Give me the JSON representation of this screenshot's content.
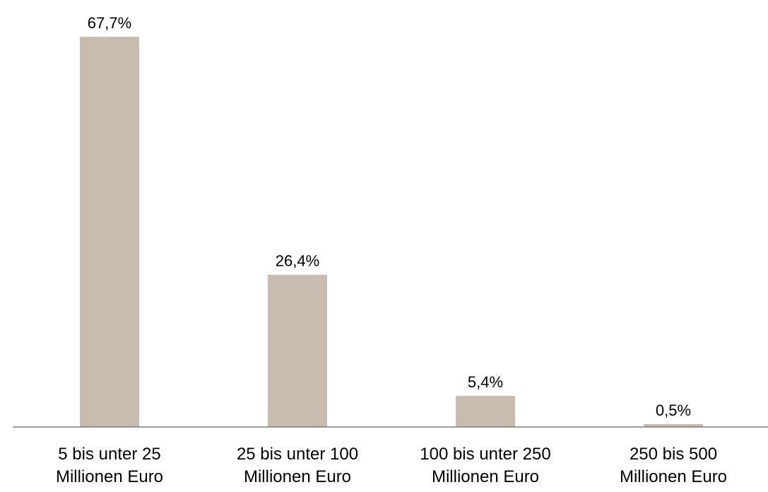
{
  "chart_data": {
    "type": "bar",
    "categories": [
      [
        "5 bis unter 25",
        "Millionen Euro"
      ],
      [
        "25 bis unter 100",
        "Millionen Euro"
      ],
      [
        "100 bis unter 250",
        "Millionen Euro"
      ],
      [
        "250 bis 500",
        "Millionen Euro"
      ]
    ],
    "values": [
      67.7,
      26.4,
      5.4,
      0.5
    ],
    "value_labels": [
      "67,7%",
      "26,4%",
      "5,4%",
      "0,5%"
    ],
    "title": "",
    "xlabel": "",
    "ylabel": "",
    "ylim": [
      0,
      67.7
    ],
    "grid": false,
    "legend": "none",
    "colors": {
      "bar": "#c8bcae",
      "axis": "#7f7f7f",
      "text": "#000000"
    }
  }
}
